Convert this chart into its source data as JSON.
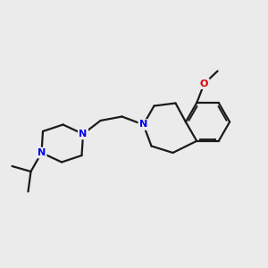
{
  "background_color": "#ebebeb",
  "bond_color": "#1a1a1a",
  "n_color": "#0000ee",
  "o_color": "#dd0000",
  "line_width": 1.6,
  "figsize": [
    3.0,
    3.0
  ],
  "dpi": 100,
  "xlim": [
    0,
    10
  ],
  "ylim": [
    0,
    10
  ]
}
